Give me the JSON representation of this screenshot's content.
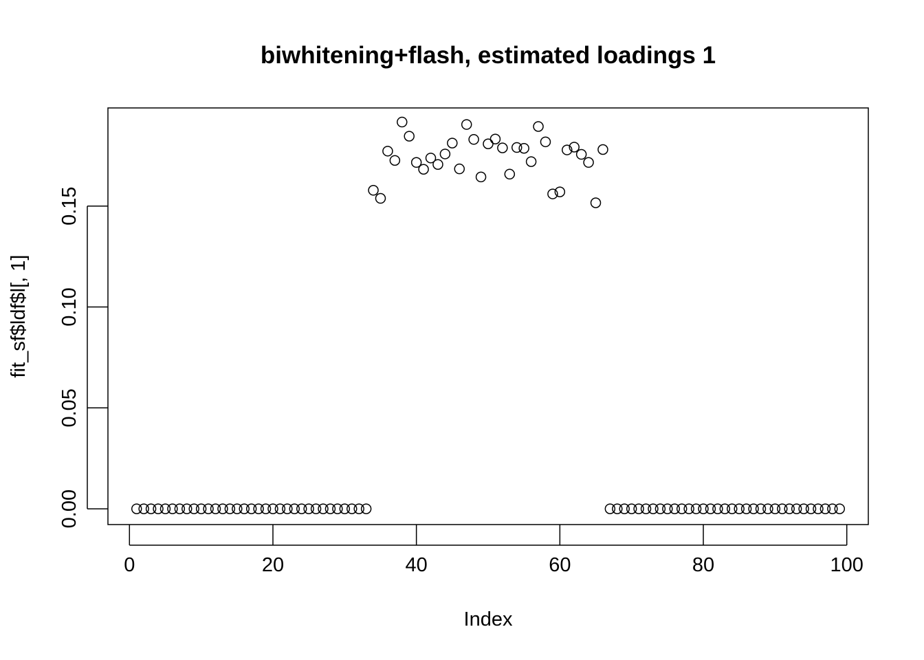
{
  "chart_data": {
    "type": "scatter",
    "title": "biwhitening+flash, estimated loadings 1",
    "xlabel": "Index",
    "ylabel": "fit_sf$ldf$l[, 1]",
    "xlim": [
      -3.0,
      103.0
    ],
    "ylim": [
      -0.0078,
      0.1986
    ],
    "x_ticks": [
      0,
      20,
      40,
      60,
      80,
      100
    ],
    "x_tick_labels": [
      "0",
      "20",
      "40",
      "60",
      "80",
      "100"
    ],
    "y_ticks": [
      0.0,
      0.05,
      0.1,
      0.15
    ],
    "y_tick_labels": [
      "0.00",
      "0.05",
      "0.10",
      "0.15"
    ],
    "grid": false,
    "legend": "none",
    "point_style": "open-circle",
    "series": [
      {
        "x": [
          1,
          2,
          3,
          4,
          5,
          6,
          7,
          8,
          9,
          10,
          11,
          12,
          13,
          14,
          15,
          16,
          17,
          18,
          19,
          20,
          21,
          22,
          23,
          24,
          25,
          26,
          27,
          28,
          29,
          30,
          31,
          32,
          33,
          34,
          35,
          36,
          37,
          38,
          39,
          40,
          41,
          42,
          43,
          44,
          45,
          46,
          47,
          48,
          49,
          50,
          51,
          52,
          53,
          54,
          55,
          56,
          57,
          58,
          59,
          60,
          61,
          62,
          63,
          64,
          65,
          66,
          67,
          68,
          69,
          70,
          71,
          72,
          73,
          74,
          75,
          76,
          77,
          78,
          79,
          80,
          81,
          82,
          83,
          84,
          85,
          86,
          87,
          88,
          89,
          90,
          91,
          92,
          93,
          94,
          95,
          96,
          97,
          98,
          99
        ],
        "y": [
          0,
          0,
          0,
          0,
          0,
          0,
          0,
          0,
          0,
          0,
          0,
          0,
          0,
          0,
          0,
          0,
          0,
          0,
          0,
          0,
          0,
          0,
          0,
          0,
          0,
          0,
          0,
          0,
          0,
          0,
          0,
          0,
          0,
          0.1578,
          0.1538,
          0.1772,
          0.1726,
          0.1916,
          0.1846,
          0.1716,
          0.1682,
          0.1738,
          0.1706,
          0.1758,
          0.1812,
          0.1684,
          0.1904,
          0.183,
          0.1644,
          0.1808,
          0.1832,
          0.1788,
          0.1658,
          0.179,
          0.1786,
          0.172,
          0.1894,
          0.1818,
          0.156,
          0.157,
          0.1778,
          0.1792,
          0.1756,
          0.1716,
          0.1516,
          0.178,
          0,
          0,
          0,
          0,
          0,
          0,
          0,
          0,
          0,
          0,
          0,
          0,
          0,
          0,
          0,
          0,
          0,
          0,
          0,
          0,
          0,
          0,
          0,
          0,
          0,
          0,
          0,
          0,
          0,
          0,
          0,
          0,
          0
        ]
      }
    ]
  }
}
